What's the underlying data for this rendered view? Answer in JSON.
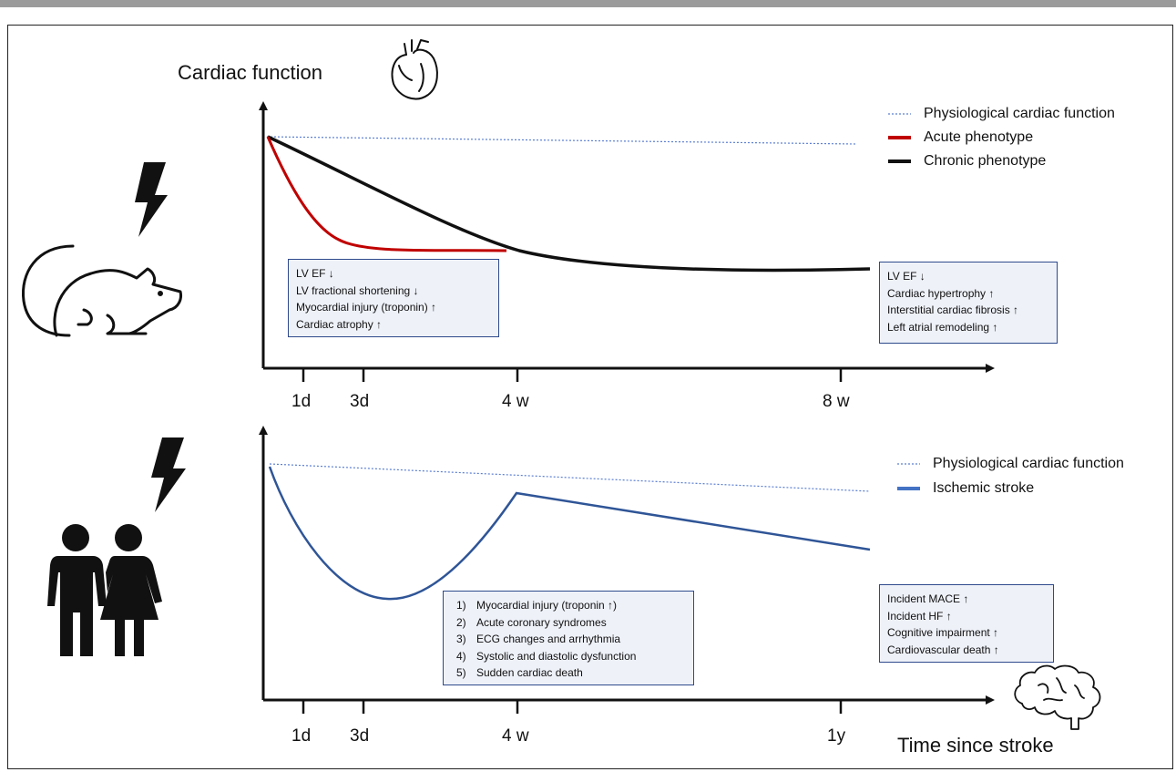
{
  "top_panel": {
    "y_axis_title": "Cardiac function",
    "x_ticks": [
      "1d",
      "3d",
      "4 w",
      "8 w"
    ],
    "legend": [
      {
        "label": "Physiological cardiac function",
        "style": "dotted",
        "color": "#5b7fd1"
      },
      {
        "label": "Acute phenotype",
        "style": "solid",
        "color": "#c00000"
      },
      {
        "label": "Chronic phenotype",
        "style": "solid",
        "color": "#111111"
      }
    ],
    "acute_box": [
      "LV EF ↓",
      "LV fractional shortening ↓",
      "Myocardial injury (troponin) ↑",
      "Cardiac atrophy ↑"
    ],
    "chronic_box": [
      "LV EF ↓",
      "Cardiac hypertrophy ↑",
      "Interstitial cardiac fibrosis ↑",
      "Left atrial remodeling ↑"
    ]
  },
  "bottom_panel": {
    "x_ticks": [
      "1d",
      "3d",
      "4 w",
      "1y"
    ],
    "x_axis_title": "Time since stroke",
    "legend": [
      {
        "label": "Physiological cardiac function",
        "style": "dotted",
        "color": "#5b7fd1"
      },
      {
        "label": "Ischemic stroke",
        "style": "solid",
        "color": "#2f5597"
      }
    ],
    "acute_box": [
      {
        "num": "1)",
        "text": "Myocardial injury  (troponin ↑)"
      },
      {
        "num": "2)",
        "text": "Acute coronary syndromes"
      },
      {
        "num": "3)",
        "text": "ECG changes and arrhythmia"
      },
      {
        "num": "4)",
        "text": "Systolic and diastolic dysfunction"
      },
      {
        "num": "5)",
        "text": "Sudden cardiac death"
      }
    ],
    "chronic_box": [
      "Incident MACE ↑",
      "Incident HF ↑",
      "Cognitive impairment ↑",
      "Cardiovascular death ↑"
    ]
  },
  "icons": [
    "heart-icon",
    "lightning-bolt-icon",
    "mouse-icon",
    "people-icon",
    "brain-icon"
  ]
}
